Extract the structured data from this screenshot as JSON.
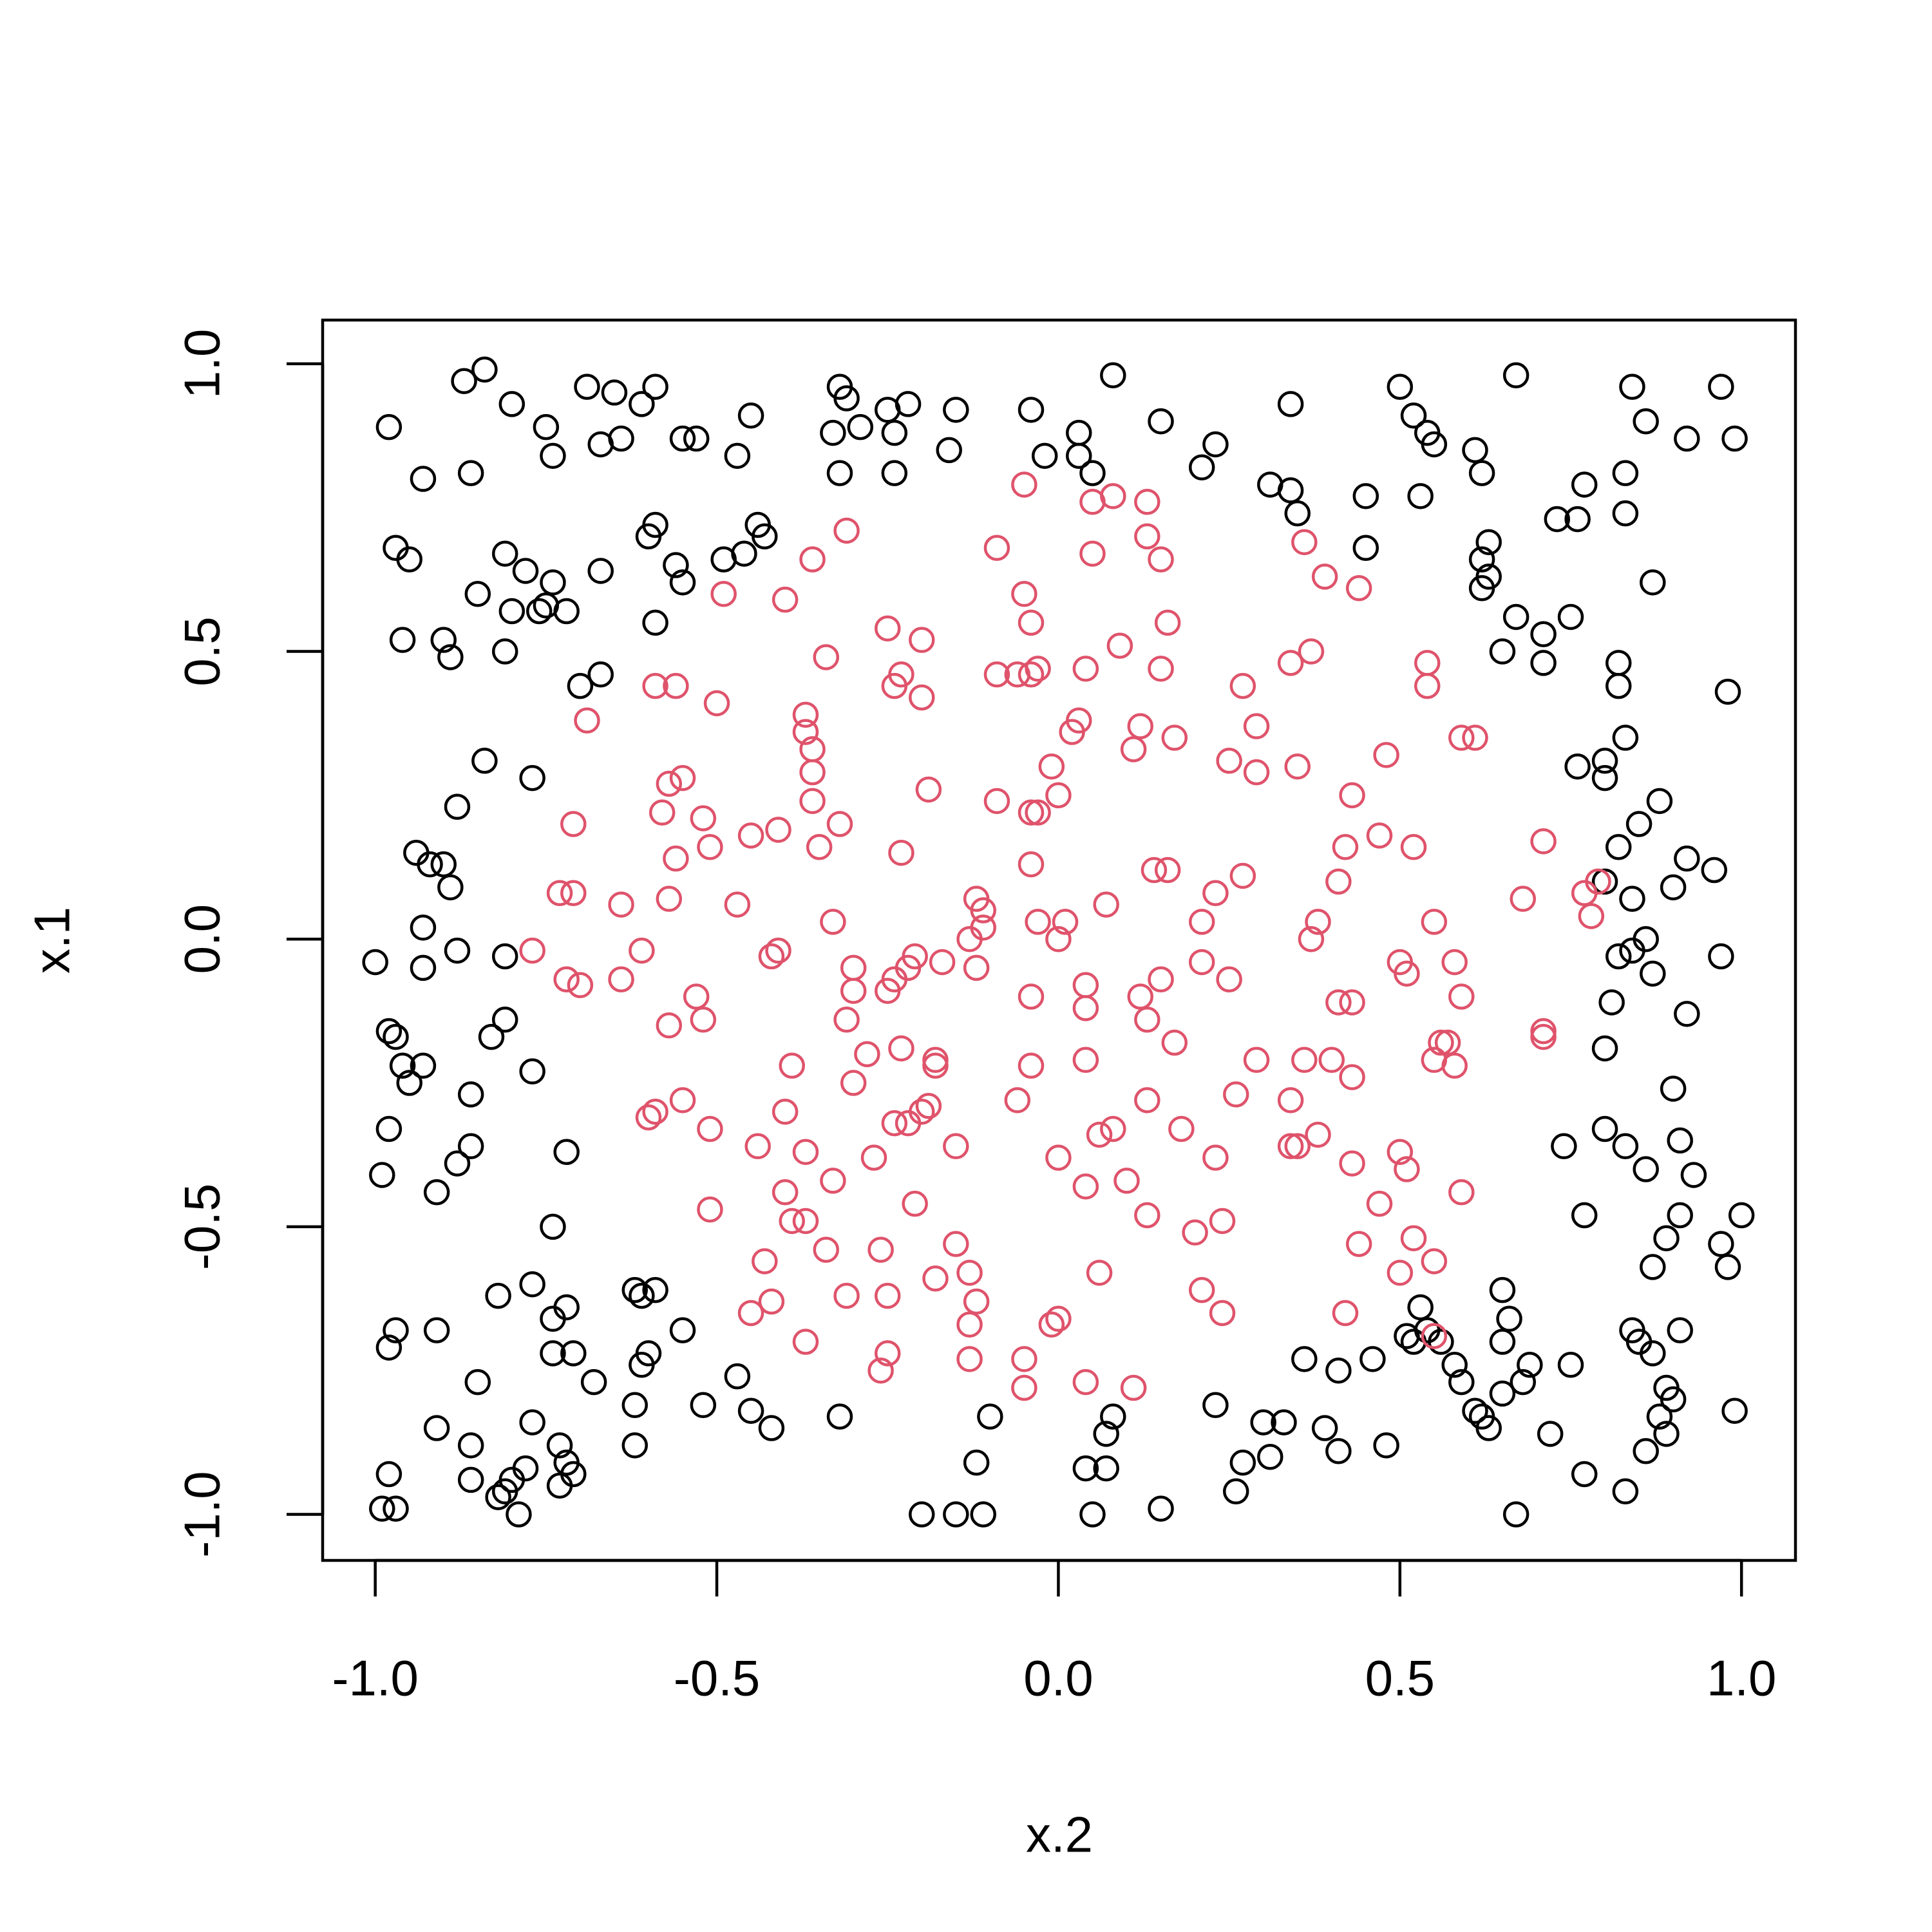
{
  "chart_data": {
    "type": "scatter",
    "x_label": "x.2",
    "y_label": "x.1",
    "xlim": [
      -1.077,
      1.079
    ],
    "ylim": [
      -1.08,
      1.076
    ],
    "xticks": [
      {
        "value": -1,
        "label": "-1.0"
      },
      {
        "value": -0.5,
        "label": "-0.5"
      },
      {
        "value": 0,
        "label": "0.0"
      },
      {
        "value": 0.5,
        "label": "0.5"
      },
      {
        "value": 1,
        "label": "1.0"
      }
    ],
    "yticks": [
      {
        "value": -1,
        "label": "-1.0"
      },
      {
        "value": -0.5,
        "label": "-0.5"
      },
      {
        "value": 0,
        "label": "0.0"
      },
      {
        "value": 0.5,
        "label": "0.5"
      },
      {
        "value": 1,
        "label": "1.0"
      }
    ],
    "grid": false,
    "series": [
      {
        "color": "#000000",
        "x": [
          -0.98,
          -0.93,
          -0.87,
          -0.84,
          -0.8,
          -0.86,
          -0.75,
          -0.74,
          -0.69,
          -0.67,
          -0.65,
          -0.64,
          -0.61,
          -0.59,
          -0.55,
          -0.53,
          -0.47,
          -0.45,
          -0.33,
          -0.32,
          -0.31,
          -0.29,
          -0.25,
          -0.24,
          -0.22,
          -0.32,
          -0.24,
          -0.15,
          -0.16,
          -0.04,
          -0.02,
          0.03,
          0.03,
          0.05,
          0.08,
          0.15,
          0.21,
          0.23,
          0.34,
          0.31,
          0.34,
          0.35,
          0.45,
          0.45,
          0.5,
          0.52,
          0.54,
          0.55,
          0.53,
          0.61,
          0.62,
          0.67,
          0.84,
          0.86,
          0.83,
          0.77,
          0.73,
          0.76,
          0.83,
          0.97,
          0.92,
          0.99,
          0.87,
          0.63,
          0.62,
          0.63,
          0.62,
          0.67,
          0.65,
          0.71,
          0.71,
          0.75,
          0.82,
          0.82,
          0.98,
          0.76,
          0.8,
          0.8,
          0.83,
          0.88,
          0.85,
          0.82,
          0.92,
          0.96,
          0.8,
          0.84,
          0.9,
          0.82,
          0.84,
          0.86,
          0.87,
          0.97,
          0.81,
          0.8,
          0.92,
          0.9,
          0.8,
          0.83,
          0.86,
          0.91,
          0.93,
          0.74,
          0.77,
          0.91,
          0.89,
          0.97,
          0.98,
          1.0,
          0.87,
          0.65,
          0.66,
          0.65,
          0.84,
          0.85,
          0.87,
          0.91,
          0.89,
          0.9,
          0.75,
          0.58,
          0.59,
          0.53,
          0.51,
          0.54,
          0.52,
          0.56,
          0.65,
          0.68,
          0.69,
          0.61,
          0.62,
          0.63,
          0.72,
          0.88,
          0.89,
          0.99,
          0.77,
          0.86,
          0.83,
          0.67,
          0.48,
          0.46,
          0.41,
          0.36,
          0.39,
          0.41,
          0.33,
          0.3,
          0.31,
          0.27,
          0.26,
          0.23,
          0.15,
          0.07,
          0.07,
          0.08,
          0.05,
          0.04,
          -0.1,
          -0.12,
          -0.11,
          -0.15,
          -0.2,
          -0.32,
          -0.42,
          -0.45,
          -0.47,
          -0.52,
          -0.55,
          -0.59,
          -0.61,
          -0.62,
          -0.6,
          -0.61,
          -0.62,
          -0.62,
          -0.68,
          -0.71,
          -0.74,
          -0.72,
          -0.74,
          -0.77,
          -0.82,
          -0.85,
          -0.91,
          -0.97,
          -0.98,
          -0.91,
          -0.86,
          -0.77,
          -0.73,
          -0.72,
          -0.71,
          -0.73,
          -0.78,
          -0.8,
          -0.81,
          -0.82,
          -0.79,
          -0.86,
          -0.97,
          -0.99,
          -0.98,
          -0.99,
          -0.98,
          -0.91,
          -0.88,
          -0.86,
          -0.86,
          -0.83,
          -0.81,
          -0.77,
          -0.72,
          -0.74,
          -0.98,
          -0.97,
          -0.96,
          -0.95,
          -0.93,
          -1.0,
          -0.93,
          -0.93,
          -0.88,
          -0.81,
          -0.94,
          -0.92,
          -0.9,
          -0.89,
          -0.88,
          -0.84,
          -0.77,
          -0.7,
          -0.67,
          -0.96,
          -0.9,
          -0.89,
          -0.81,
          -0.8,
          -0.85,
          -0.81,
          -0.78,
          -0.76,
          -0.75,
          -0.74,
          -0.72,
          -0.67,
          -0.97,
          -0.95,
          -0.59,
          -0.59,
          -0.6,
          -0.56,
          -0.55,
          -0.49,
          -0.46,
          -0.44,
          -0.43
        ],
        "values": [
          0.89,
          0.8,
          0.97,
          0.99,
          0.93,
          0.81,
          0.89,
          0.84,
          0.96,
          0.86,
          0.95,
          0.87,
          0.93,
          0.96,
          0.87,
          0.87,
          0.84,
          0.91,
          0.88,
          0.96,
          0.94,
          0.89,
          0.92,
          0.88,
          0.93,
          0.81,
          0.81,
          0.92,
          0.85,
          0.92,
          0.84,
          0.88,
          0.84,
          0.81,
          0.98,
          0.9,
          0.82,
          0.86,
          0.93,
          0.79,
          0.78,
          0.74,
          0.77,
          0.68,
          0.96,
          0.91,
          0.88,
          0.86,
          0.77,
          0.85,
          0.81,
          0.98,
          0.96,
          0.9,
          0.81,
          0.79,
          0.73,
          0.73,
          0.74,
          0.96,
          0.87,
          0.87,
          0.62,
          0.69,
          0.66,
          0.63,
          0.61,
          0.56,
          0.5,
          0.53,
          0.48,
          0.56,
          0.48,
          0.44,
          0.43,
          0.3,
          0.31,
          0.28,
          0.35,
          0.24,
          0.2,
          0.16,
          0.14,
          0.12,
          0.1,
          0.07,
          0.09,
          -0.03,
          -0.02,
          0.0,
          -0.06,
          -0.03,
          -0.11,
          -0.19,
          -0.13,
          -0.26,
          -0.33,
          -0.36,
          -0.4,
          -0.35,
          -0.41,
          -0.36,
          -0.48,
          -0.48,
          -0.52,
          -0.53,
          -0.57,
          -0.48,
          -0.57,
          -0.61,
          -0.66,
          -0.7,
          -0.68,
          -0.7,
          -0.72,
          -0.68,
          -0.78,
          -0.8,
          -0.74,
          -0.74,
          -0.77,
          -0.64,
          -0.69,
          -0.68,
          -0.7,
          -0.7,
          -0.79,
          -0.77,
          -0.74,
          -0.82,
          -0.83,
          -0.85,
          -0.86,
          -0.83,
          -0.86,
          -0.82,
          -0.93,
          -0.89,
          -0.96,
          -1.0,
          -0.88,
          -0.73,
          -0.75,
          -0.73,
          -0.85,
          -0.89,
          -0.84,
          -0.84,
          -0.9,
          -0.91,
          -0.96,
          -0.81,
          -0.99,
          -0.92,
          -0.86,
          -0.83,
          -1.0,
          -0.92,
          -0.83,
          -0.91,
          -1.0,
          -1.0,
          -1.0,
          -0.83,
          -0.85,
          -0.82,
          -0.76,
          -0.81,
          -0.68,
          -0.61,
          -0.62,
          -0.61,
          -0.72,
          -0.74,
          -0.81,
          -0.88,
          -0.77,
          -0.72,
          -0.72,
          -0.64,
          -0.66,
          -0.6,
          -0.62,
          -0.77,
          -0.68,
          -0.68,
          -0.71,
          -0.85,
          -0.88,
          -0.84,
          -0.88,
          -0.91,
          -0.93,
          -0.95,
          -0.92,
          -0.94,
          -0.96,
          -0.97,
          -1.0,
          -0.94,
          -0.99,
          -0.99,
          -0.93,
          -0.41,
          -0.33,
          -0.44,
          -0.39,
          -0.36,
          -0.27,
          -0.17,
          -0.14,
          -0.23,
          -0.37,
          -0.5,
          -0.16,
          -0.17,
          -0.22,
          -0.25,
          -0.22,
          -0.04,
          -0.05,
          0.02,
          -0.02,
          -0.03,
          0.15,
          0.13,
          0.13,
          0.09,
          0.23,
          0.31,
          0.28,
          0.44,
          0.46,
          0.52,
          0.52,
          0.49,
          0.5,
          0.57,
          0.6,
          0.67,
          0.64,
          0.57,
          0.58,
          0.62,
          0.57,
          0.64,
          0.68,
          0.66,
          0.55,
          0.72,
          0.7,
          0.65,
          0.62,
          0.66,
          0.67,
          0.72,
          0.7
        ]
      },
      {
        "color": "#DF536B",
        "x": [
          -0.05,
          0.05,
          0.08,
          0.13,
          0.13,
          0.15,
          0.05,
          -0.09,
          -0.31,
          -0.36,
          -0.4,
          -0.49,
          -0.34,
          -0.25,
          -0.24,
          -0.23,
          -0.2,
          -0.2,
          -0.05,
          -0.04,
          -0.04,
          -0.06,
          -0.09,
          -0.03,
          0.04,
          0.09,
          0.15,
          0.16,
          0.03,
          0.02,
          0.12,
          0.11,
          0.17,
          0.36,
          0.39,
          0.44,
          0.34,
          0.37,
          0.27,
          0.29,
          0.25,
          0.29,
          0.35,
          0.43,
          0.48,
          0.54,
          0.54,
          0.59,
          0.61,
          -0.59,
          -0.56,
          -0.5,
          -0.69,
          -0.37,
          -0.37,
          -0.36,
          -0.36,
          -0.36,
          -0.32,
          -0.35,
          -0.57,
          -0.55,
          -0.58,
          -0.52,
          -0.56,
          -0.51,
          -0.45,
          -0.41,
          -0.19,
          -0.23,
          -0.71,
          -0.73,
          -0.71,
          -0.64,
          -0.57,
          -0.47,
          -0.33,
          -0.09,
          -0.04,
          -0.03,
          -0.01,
          0.0,
          -0.04,
          0.04,
          -0.12,
          -0.11,
          -0.11,
          -0.13,
          -0.03,
          0.01,
          0.0,
          0.07,
          0.14,
          0.16,
          0.23,
          0.27,
          0.21,
          0.21,
          0.25,
          0.15,
          0.12,
          0.13,
          0.17,
          0.04,
          -0.04,
          0.41,
          0.42,
          0.47,
          0.52,
          0.38,
          0.37,
          0.55,
          0.5,
          0.51,
          0.58,
          0.59,
          0.41,
          0.43,
          0.56,
          0.57,
          0.55,
          0.58,
          0.71,
          0.68,
          0.77,
          0.79,
          0.78,
          0.71,
          0.71,
          0.36,
          0.4,
          0.43,
          0.29,
          0.26,
          0.34,
          0.38,
          0.34,
          0.35,
          0.43,
          0.5,
          0.51,
          0.47,
          0.52,
          0.44,
          0.5,
          0.55,
          0.59,
          0.55,
          0.42,
          0.24,
          0.24,
          0.2,
          0.23,
          0.18,
          0.13,
          0.13,
          0.1,
          0.04,
          0.0,
          0.06,
          0.08,
          0.04,
          -0.04,
          -0.06,
          0.06,
          0.21,
          0.0,
          -0.01,
          0.04,
          0.11,
          -0.05,
          -0.05,
          -0.13,
          -0.13,
          -0.12,
          -0.13,
          -0.15,
          -0.18,
          -0.21,
          -0.15,
          -0.22,
          -0.24,
          -0.2,
          -0.19,
          -0.27,
          -0.26,
          -0.25,
          -0.25,
          -0.26,
          -0.31,
          -0.34,
          -0.37,
          -0.39,
          -0.4,
          -0.37,
          -0.4,
          -0.39,
          -0.44,
          -0.43,
          -0.42,
          -0.45,
          -0.37,
          -0.51,
          -0.51,
          -0.55,
          -0.59,
          -0.6,
          -0.57,
          -0.52,
          -0.53,
          -0.61,
          -0.64,
          -0.7,
          -0.72,
          -0.77,
          -0.42,
          -0.41,
          -0.3,
          -0.3,
          -0.31,
          -0.3,
          -0.28,
          -0.25,
          -0.24,
          -0.22,
          -0.21,
          -0.17,
          -0.23,
          -0.18,
          -0.18,
          -0.33,
          -0.12
        ],
        "values": [
          0.79,
          0.76,
          0.77,
          0.76,
          0.7,
          0.66,
          0.67,
          0.68,
          0.71,
          0.66,
          0.59,
          0.6,
          0.49,
          0.54,
          0.44,
          0.46,
          0.52,
          0.42,
          0.6,
          0.55,
          0.46,
          0.46,
          0.46,
          0.47,
          0.47,
          0.51,
          0.47,
          0.55,
          0.38,
          0.36,
          0.37,
          0.33,
          0.35,
          0.69,
          0.63,
          0.61,
          0.48,
          0.5,
          0.44,
          0.37,
          0.31,
          0.29,
          0.3,
          0.25,
          0.32,
          0.48,
          0.44,
          0.35,
          0.35,
          0.44,
          0.44,
          0.41,
          0.38,
          0.39,
          0.36,
          0.33,
          0.29,
          0.24,
          0.2,
          0.16,
          0.27,
          0.28,
          0.22,
          0.21,
          0.14,
          0.16,
          0.18,
          0.19,
          0.26,
          0.15,
          0.2,
          0.08,
          0.08,
          0.06,
          0.07,
          0.06,
          0.03,
          0.24,
          0.22,
          0.22,
          0.3,
          0.25,
          0.13,
          -0.08,
          0.07,
          0.05,
          0.02,
          0.0,
          0.03,
          0.03,
          0.0,
          0.06,
          0.12,
          0.12,
          0.08,
          0.11,
          0.03,
          -0.04,
          -0.07,
          -0.07,
          -0.1,
          -0.14,
          -0.18,
          -0.12,
          -0.1,
          0.1,
          0.16,
          0.18,
          0.16,
          0.03,
          0.0,
          0.03,
          -0.04,
          -0.06,
          -0.04,
          -0.1,
          -0.11,
          -0.11,
          -0.18,
          -0.18,
          -0.21,
          -0.22,
          0.17,
          0.07,
          0.08,
          0.1,
          0.04,
          -0.16,
          -0.17,
          -0.21,
          -0.21,
          -0.24,
          -0.21,
          -0.27,
          -0.28,
          -0.34,
          -0.36,
          -0.36,
          -0.39,
          -0.37,
          -0.4,
          -0.46,
          -0.52,
          -0.53,
          -0.58,
          -0.56,
          -0.44,
          -0.69,
          -0.65,
          -0.65,
          -0.49,
          -0.51,
          -0.38,
          -0.33,
          -0.28,
          -0.48,
          -0.42,
          -0.43,
          -0.38,
          -0.34,
          -0.33,
          -0.21,
          -0.22,
          -0.28,
          -0.58,
          -0.61,
          -0.66,
          -0.67,
          -0.77,
          -0.78,
          -0.73,
          -0.78,
          -0.73,
          -0.67,
          -0.63,
          -0.58,
          -0.53,
          -0.59,
          -0.46,
          -0.36,
          -0.32,
          -0.32,
          -0.3,
          -0.29,
          -0.38,
          -0.54,
          -0.62,
          -0.72,
          -0.75,
          -0.62,
          -0.54,
          -0.49,
          -0.49,
          -0.44,
          -0.37,
          -0.3,
          -0.22,
          -0.36,
          -0.56,
          -0.63,
          -0.65,
          -0.7,
          -0.47,
          -0.33,
          -0.28,
          -0.3,
          -0.31,
          -0.15,
          -0.14,
          -0.1,
          -0.02,
          -0.07,
          -0.08,
          -0.07,
          -0.02,
          -0.03,
          -0.02,
          -0.05,
          -0.09,
          -0.14,
          -0.25,
          -0.2,
          -0.09,
          -0.07,
          -0.05,
          -0.03,
          -0.04,
          -0.19,
          -0.21,
          -0.22,
          -0.42,
          -0.05
        ]
      }
    ]
  }
}
